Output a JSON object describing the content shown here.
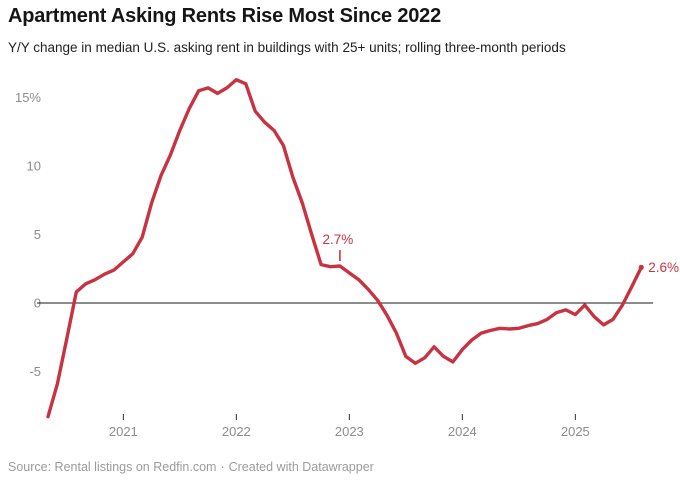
{
  "header": {
    "title": "Apartment Asking Rents Rise Most Since 2022",
    "subtitle": "Y/Y change in median U.S. asking rent in buildings with 25+ units; rolling three-month periods"
  },
  "footer": {
    "source": "Source: Rental listings on Redfin.com",
    "separator": "·",
    "credit": "Created with Datawrapper"
  },
  "colors": {
    "line": "#c83342",
    "annotation_text": "#c83342",
    "axis_label": "#8c8c8c",
    "zero_line": "#1a1a1a",
    "tick_mark": "#2e2e2e",
    "background": "#ffffff",
    "title_text": "#161616",
    "subtitle_text": "#222222",
    "footer_text": "#9b9b9b"
  },
  "chart_data": {
    "type": "line",
    "title": "Apartment Asking Rents Rise Most Since 2022",
    "subtitle": "Y/Y change in median U.S. asking rent in buildings with 25+ units; rolling three-month periods",
    "unit": "percent",
    "x_range": {
      "start": "2020-05",
      "end": "2025-08",
      "interval": "monthly"
    },
    "ylim": [
      -8.5,
      16.5
    ],
    "grid": "off",
    "legend": "none",
    "values": [
      -8.3,
      -5.9,
      -2.6,
      0.8,
      1.4,
      1.7,
      2.1,
      2.4,
      3.0,
      3.6,
      4.8,
      7.3,
      9.3,
      10.8,
      12.6,
      14.2,
      15.5,
      15.7,
      15.3,
      15.7,
      16.3,
      16.0,
      14.0,
      13.2,
      12.6,
      11.5,
      9.2,
      7.3,
      5.0,
      2.8,
      2.65,
      2.7,
      2.2,
      1.7,
      1.0,
      0.2,
      -0.9,
      -2.2,
      -3.9,
      -4.4,
      -4.0,
      -3.2,
      -3.9,
      -4.3,
      -3.4,
      -2.7,
      -2.2,
      -2.0,
      -1.85,
      -1.9,
      -1.85,
      -1.65,
      -1.5,
      -1.2,
      -0.7,
      -0.5,
      -0.85,
      -0.15,
      -1.0,
      -1.6,
      -1.2,
      -0.15,
      1.2,
      2.6
    ],
    "yticks": [
      {
        "value": 15,
        "label": "15%"
      },
      {
        "value": 10,
        "label": "10"
      },
      {
        "value": 5,
        "label": "5"
      },
      {
        "value": 0,
        "label": "0"
      },
      {
        "value": -5,
        "label": "-5"
      }
    ],
    "xticks": [
      {
        "label": "2021",
        "month_index": 8
      },
      {
        "label": "2022",
        "month_index": 20
      },
      {
        "label": "2023",
        "month_index": 32
      },
      {
        "label": "2024",
        "month_index": 44
      },
      {
        "label": "2025",
        "month_index": 56
      }
    ],
    "annotations": [
      {
        "text": "2.7%",
        "month": "2022-12",
        "month_index": 31,
        "value": 2.7,
        "placement": "above"
      },
      {
        "text": "2.6%",
        "month": "2025-08",
        "month_index": 63,
        "value": 2.6,
        "placement": "right"
      }
    ]
  }
}
